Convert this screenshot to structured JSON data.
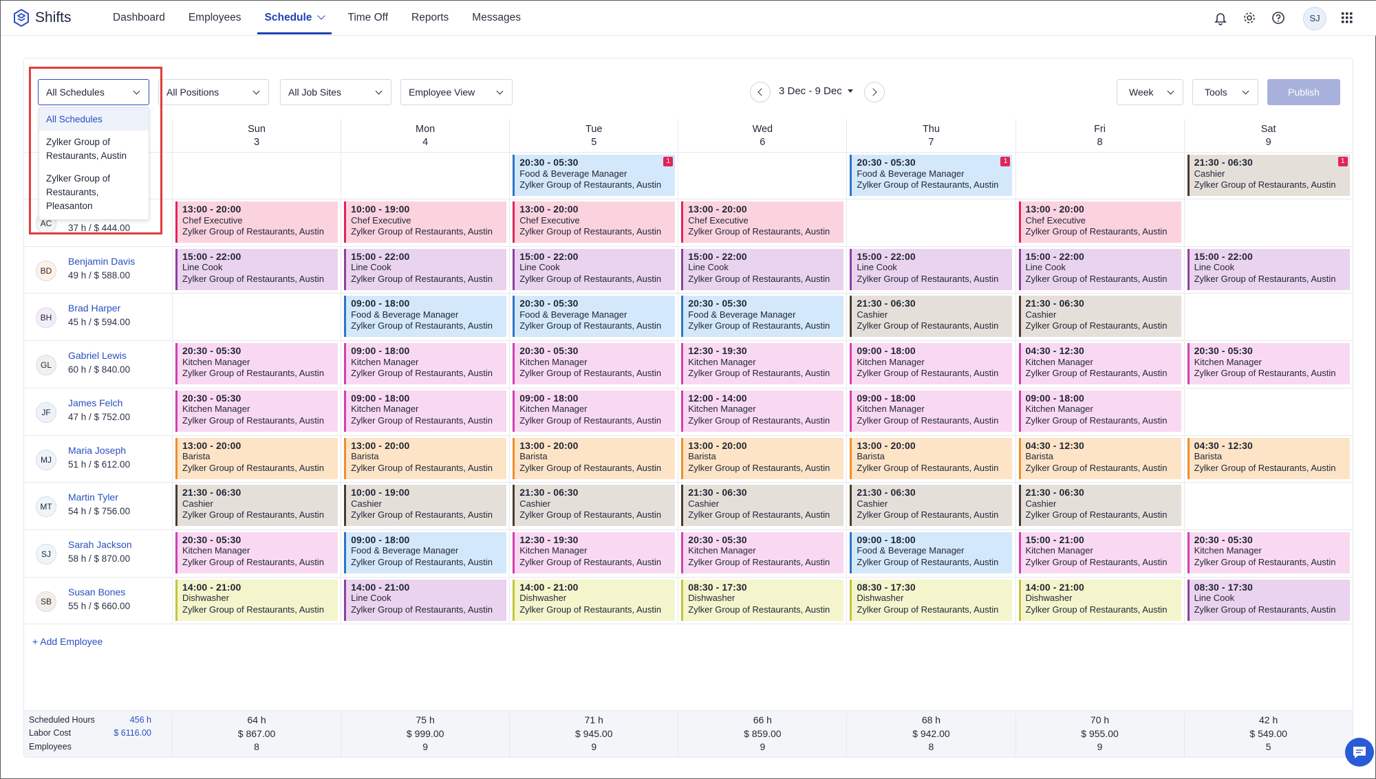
{
  "app": {
    "name": "Shifts"
  },
  "nav": {
    "items": [
      {
        "label": "Dashboard",
        "active": false
      },
      {
        "label": "Employees",
        "active": false
      },
      {
        "label": "Schedule",
        "active": true
      },
      {
        "label": "Time Off",
        "active": false
      },
      {
        "label": "Reports",
        "active": false
      },
      {
        "label": "Messages",
        "active": false
      }
    ],
    "user_initials": "SJ"
  },
  "filters": {
    "schedules": "All Schedules",
    "positions": "All Positions",
    "job_sites": "All Job Sites",
    "view": "Employee View"
  },
  "date_range": "3 Dec - 9 Dec",
  "range_mode": "Week",
  "tools_label": "Tools",
  "publish_label": "Publish",
  "schedule_dropdown": {
    "options": [
      "All Schedules",
      "Zylker Group of Restaurants, Austin",
      "Zylker Group of Restaurants, Pleasanton"
    ],
    "selected": "All Schedules"
  },
  "days": [
    {
      "name": "Sun",
      "num": "3"
    },
    {
      "name": "Mon",
      "num": "4"
    },
    {
      "name": "Tue",
      "num": "5"
    },
    {
      "name": "Wed",
      "num": "6"
    },
    {
      "name": "Thu",
      "num": "7"
    },
    {
      "name": "Fri",
      "num": "8"
    },
    {
      "name": "Sat",
      "num": "9"
    }
  ],
  "open_shifts": [
    null,
    null,
    {
      "time": "20:30 - 05:30",
      "role": "Food & Beverage Manager",
      "site": "Zylker Group of Restaurants, Austin",
      "badge": "1"
    },
    null,
    {
      "time": "20:30 - 05:30",
      "role": "Food & Beverage Manager",
      "site": "Zylker Group of Restaurants, Austin",
      "badge": "1"
    },
    null,
    {
      "time": "21:30 - 06:30",
      "role": "Cashier",
      "site": "Zylker Group of Restaurants, Austin",
      "badge": "1"
    }
  ],
  "employees": [
    {
      "initials": "AC",
      "name": "",
      "stats": "37 h / $ 444.00",
      "shifts": [
        {
          "time": "13:00 - 20:00",
          "role": "Chef Executive",
          "site": "Zylker Group of Restaurants, Austin"
        },
        {
          "time": "10:00 - 19:00",
          "role": "Chef Executive",
          "site": "Zylker Group of Restaurants, Austin"
        },
        {
          "time": "13:00 - 20:00",
          "role": "Chef Executive",
          "site": "Zylker Group of Restaurants, Austin"
        },
        {
          "time": "13:00 - 20:00",
          "role": "Chef Executive",
          "site": "Zylker Group of Restaurants, Austin"
        },
        null,
        {
          "time": "13:00 - 20:00",
          "role": "Chef Executive",
          "site": "Zylker Group of Restaurants, Austin"
        },
        null
      ]
    },
    {
      "initials": "BD",
      "name": "Benjamin Davis",
      "stats": "49 h / $ 588.00",
      "shifts": [
        {
          "time": "15:00 - 22:00",
          "role": "Line Cook",
          "site": "Zylker Group of Restaurants, Austin"
        },
        {
          "time": "15:00 - 22:00",
          "role": "Line Cook",
          "site": "Zylker Group of Restaurants, Austin"
        },
        {
          "time": "15:00 - 22:00",
          "role": "Line Cook",
          "site": "Zylker Group of Restaurants, Austin"
        },
        {
          "time": "15:00 - 22:00",
          "role": "Line Cook",
          "site": "Zylker Group of Restaurants, Austin"
        },
        {
          "time": "15:00 - 22:00",
          "role": "Line Cook",
          "site": "Zylker Group of Restaurants, Austin"
        },
        {
          "time": "15:00 - 22:00",
          "role": "Line Cook",
          "site": "Zylker Group of Restaurants, Austin"
        },
        {
          "time": "15:00 - 22:00",
          "role": "Line Cook",
          "site": "Zylker Group of Restaurants, Austin"
        }
      ]
    },
    {
      "initials": "BH",
      "name": "Brad Harper",
      "stats": "45 h / $ 594.00",
      "shifts": [
        null,
        {
          "time": "09:00 - 18:00",
          "role": "Food & Beverage Manager",
          "site": "Zylker Group of Restaurants, Austin"
        },
        {
          "time": "20:30 - 05:30",
          "role": "Food & Beverage Manager",
          "site": "Zylker Group of Restaurants, Austin"
        },
        {
          "time": "20:30 - 05:30",
          "role": "Food & Beverage Manager",
          "site": "Zylker Group of Restaurants, Austin"
        },
        {
          "time": "21:30 - 06:30",
          "role": "Cashier",
          "site": "Zylker Group of Restaurants, Austin"
        },
        {
          "time": "21:30 - 06:30",
          "role": "Cashier",
          "site": "Zylker Group of Restaurants, Austin"
        },
        null
      ]
    },
    {
      "initials": "GL",
      "name": "Gabriel Lewis",
      "stats": "60 h / $ 840.00",
      "shifts": [
        {
          "time": "20:30 - 05:30",
          "role": "Kitchen Manager",
          "site": "Zylker Group of Restaurants, Austin"
        },
        {
          "time": "09:00 - 18:00",
          "role": "Kitchen Manager",
          "site": "Zylker Group of Restaurants, Austin"
        },
        {
          "time": "20:30 - 05:30",
          "role": "Kitchen Manager",
          "site": "Zylker Group of Restaurants, Austin"
        },
        {
          "time": "12:30 - 19:30",
          "role": "Kitchen Manager",
          "site": "Zylker Group of Restaurants, Austin"
        },
        {
          "time": "09:00 - 18:00",
          "role": "Kitchen Manager",
          "site": "Zylker Group of Restaurants, Austin"
        },
        {
          "time": "04:30 - 12:30",
          "role": "Kitchen Manager",
          "site": "Zylker Group of Restaurants, Austin"
        },
        {
          "time": "20:30 - 05:30",
          "role": "Kitchen Manager",
          "site": "Zylker Group of Restaurants, Austin"
        }
      ]
    },
    {
      "initials": "JF",
      "name": "James Felch",
      "stats": "47 h / $ 752.00",
      "shifts": [
        {
          "time": "20:30 - 05:30",
          "role": "Kitchen Manager",
          "site": "Zylker Group of Restaurants, Austin"
        },
        {
          "time": "09:00 - 18:00",
          "role": "Kitchen Manager",
          "site": "Zylker Group of Restaurants, Austin"
        },
        {
          "time": "09:00 - 18:00",
          "role": "Kitchen Manager",
          "site": "Zylker Group of Restaurants, Austin"
        },
        {
          "time": "12:00 - 14:00",
          "role": "Kitchen Manager",
          "site": "Zylker Group of Restaurants, Austin"
        },
        {
          "time": "09:00 - 18:00",
          "role": "Kitchen Manager",
          "site": "Zylker Group of Restaurants, Austin"
        },
        {
          "time": "09:00 - 18:00",
          "role": "Kitchen Manager",
          "site": "Zylker Group of Restaurants, Austin"
        },
        null
      ]
    },
    {
      "initials": "MJ",
      "name": "Maria Joseph",
      "stats": "51 h / $ 612.00",
      "shifts": [
        {
          "time": "13:00 - 20:00",
          "role": "Barista",
          "site": "Zylker Group of Restaurants, Austin"
        },
        {
          "time": "13:00 - 20:00",
          "role": "Barista",
          "site": "Zylker Group of Restaurants, Austin"
        },
        {
          "time": "13:00 - 20:00",
          "role": "Barista",
          "site": "Zylker Group of Restaurants, Austin"
        },
        {
          "time": "13:00 - 20:00",
          "role": "Barista",
          "site": "Zylker Group of Restaurants, Austin"
        },
        {
          "time": "13:00 - 20:00",
          "role": "Barista",
          "site": "Zylker Group of Restaurants, Austin"
        },
        {
          "time": "04:30 - 12:30",
          "role": "Barista",
          "site": "Zylker Group of Restaurants, Austin"
        },
        {
          "time": "04:30 - 12:30",
          "role": "Barista",
          "site": "Zylker Group of Restaurants, Austin"
        }
      ]
    },
    {
      "initials": "MT",
      "name": "Martin Tyler",
      "stats": "54 h / $ 756.00",
      "shifts": [
        {
          "time": "21:30 - 06:30",
          "role": "Cashier",
          "site": "Zylker Group of Restaurants, Austin"
        },
        {
          "time": "10:00 - 19:00",
          "role": "Cashier",
          "site": "Zylker Group of Restaurants, Austin"
        },
        {
          "time": "21:30 - 06:30",
          "role": "Cashier",
          "site": "Zylker Group of Restaurants, Austin"
        },
        {
          "time": "21:30 - 06:30",
          "role": "Cashier",
          "site": "Zylker Group of Restaurants, Austin"
        },
        {
          "time": "21:30 - 06:30",
          "role": "Cashier",
          "site": "Zylker Group of Restaurants, Austin"
        },
        {
          "time": "21:30 - 06:30",
          "role": "Cashier",
          "site": "Zylker Group of Restaurants, Austin"
        },
        null
      ]
    },
    {
      "initials": "SJ",
      "name": "Sarah Jackson",
      "stats": "58 h / $ 870.00",
      "shifts": [
        {
          "time": "20:30 - 05:30",
          "role": "Kitchen Manager",
          "site": "Zylker Group of Restaurants, Austin"
        },
        {
          "time": "09:00 - 18:00",
          "role": "Food & Beverage Manager",
          "site": "Zylker Group of Restaurants, Austin"
        },
        {
          "time": "12:30 - 19:30",
          "role": "Kitchen Manager",
          "site": "Zylker Group of Restaurants, Austin"
        },
        {
          "time": "20:30 - 05:30",
          "role": "Kitchen Manager",
          "site": "Zylker Group of Restaurants, Austin"
        },
        {
          "time": "09:00 - 18:00",
          "role": "Food & Beverage Manager",
          "site": "Zylker Group of Restaurants, Austin"
        },
        {
          "time": "15:00 - 21:00",
          "role": "Kitchen Manager",
          "site": "Zylker Group of Restaurants, Austin"
        },
        {
          "time": "20:30 - 05:30",
          "role": "Kitchen Manager",
          "site": "Zylker Group of Restaurants, Austin"
        }
      ]
    },
    {
      "initials": "SB",
      "name": "Susan Bones",
      "stats": "55 h / $ 660.00",
      "shifts": [
        {
          "time": "14:00 - 21:00",
          "role": "Dishwasher",
          "site": "Zylker Group of Restaurants, Austin"
        },
        {
          "time": "14:00 - 21:00",
          "role": "Line Cook",
          "site": "Zylker Group of Restaurants, Austin"
        },
        {
          "time": "14:00 - 21:00",
          "role": "Dishwasher",
          "site": "Zylker Group of Restaurants, Austin"
        },
        {
          "time": "08:30 - 17:30",
          "role": "Dishwasher",
          "site": "Zylker Group of Restaurants, Austin"
        },
        {
          "time": "08:30 - 17:30",
          "role": "Dishwasher",
          "site": "Zylker Group of Restaurants, Austin"
        },
        {
          "time": "14:00 - 21:00",
          "role": "Dishwasher",
          "site": "Zylker Group of Restaurants, Austin"
        },
        {
          "time": "08:30 - 17:30",
          "role": "Line Cook",
          "site": "Zylker Group of Restaurants, Austin"
        }
      ]
    }
  ],
  "role_colors": {
    "Chef Executive": {
      "bg": "#fbd3df",
      "border": "#e0245a"
    },
    "Line Cook": {
      "bg": "#ead3ee",
      "border": "#8e3fa0"
    },
    "Food & Beverage Manager": {
      "bg": "#d3e8fb",
      "border": "#2f73c7"
    },
    "Cashier": {
      "bg": "#e5dfda",
      "border": "#4b3a2f"
    },
    "Kitchen Manager": {
      "bg": "#f9d9f1",
      "border": "#d13fb0"
    },
    "Barista": {
      "bg": "#fde4c7",
      "border": "#ee8e2a"
    },
    "Dishwasher": {
      "bg": "#f4f5cc",
      "border": "#c4c43b"
    }
  },
  "add_employee_label": "+ Add Employee",
  "summary": {
    "labels": {
      "hours": "Scheduled Hours",
      "cost": "Labor Cost",
      "employees": "Employees"
    },
    "total_hours": "456 h",
    "total_cost": "$ 6116.00",
    "daily": [
      {
        "hours": "64 h",
        "cost": "$ 867.00",
        "employees": "8"
      },
      {
        "hours": "75 h",
        "cost": "$ 999.00",
        "employees": "9"
      },
      {
        "hours": "71 h",
        "cost": "$ 945.00",
        "employees": "9"
      },
      {
        "hours": "66 h",
        "cost": "$ 859.00",
        "employees": "9"
      },
      {
        "hours": "68 h",
        "cost": "$ 942.00",
        "employees": "8"
      },
      {
        "hours": "70 h",
        "cost": "$ 955.00",
        "employees": "9"
      },
      {
        "hours": "42 h",
        "cost": "$ 549.00",
        "employees": "5"
      }
    ]
  }
}
